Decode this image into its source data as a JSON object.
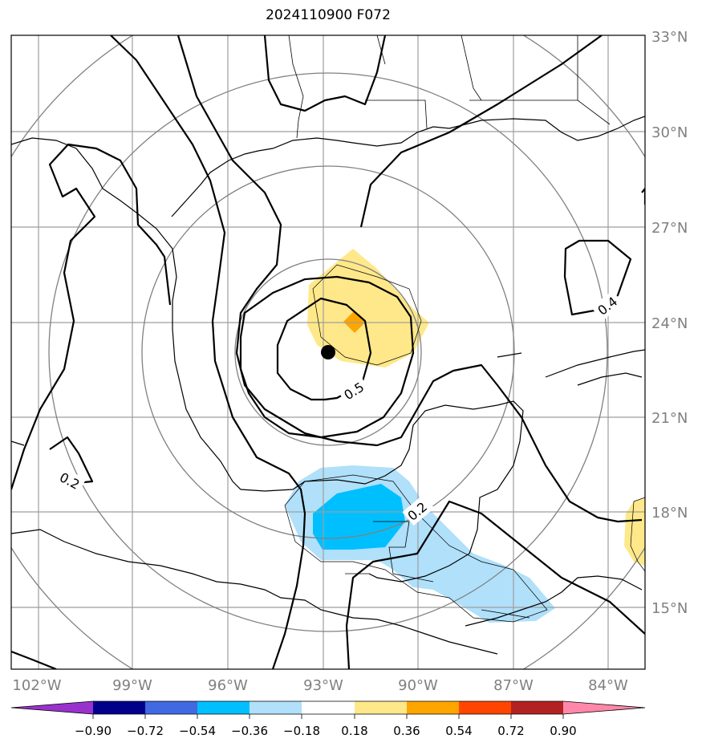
{
  "title": "2024110900 F072",
  "lat_labels": [
    "33°N",
    "30°N",
    "27°N",
    "24°N",
    "21°N",
    "18°N",
    "15°N"
  ],
  "lon_labels": [
    "102°W",
    "99°W",
    "96°W",
    "93°W",
    "90°W",
    "87°W",
    "84°W"
  ],
  "contour_labels": [
    "0.5",
    "0.4",
    "0.2",
    "0.2"
  ],
  "colorbar": {
    "ticks": [
      "−0.90",
      "−0.72",
      "−0.54",
      "−0.36",
      "−0.18",
      "0.18",
      "0.36",
      "0.54",
      "0.72",
      "0.90"
    ],
    "colors": [
      "#9932cc",
      "#00008b",
      "#4169e1",
      "#00bfff",
      "#b0e0fa",
      "#ffffff",
      "#ffe88a",
      "#ffa500",
      "#ff4500",
      "#b22222",
      "#ff88aa"
    ]
  },
  "colors": {
    "positive_light": "#ffe88a",
    "positive_mid": "#ffa500",
    "negative_light": "#b0e0fa",
    "negative_mid": "#00bfff"
  }
}
